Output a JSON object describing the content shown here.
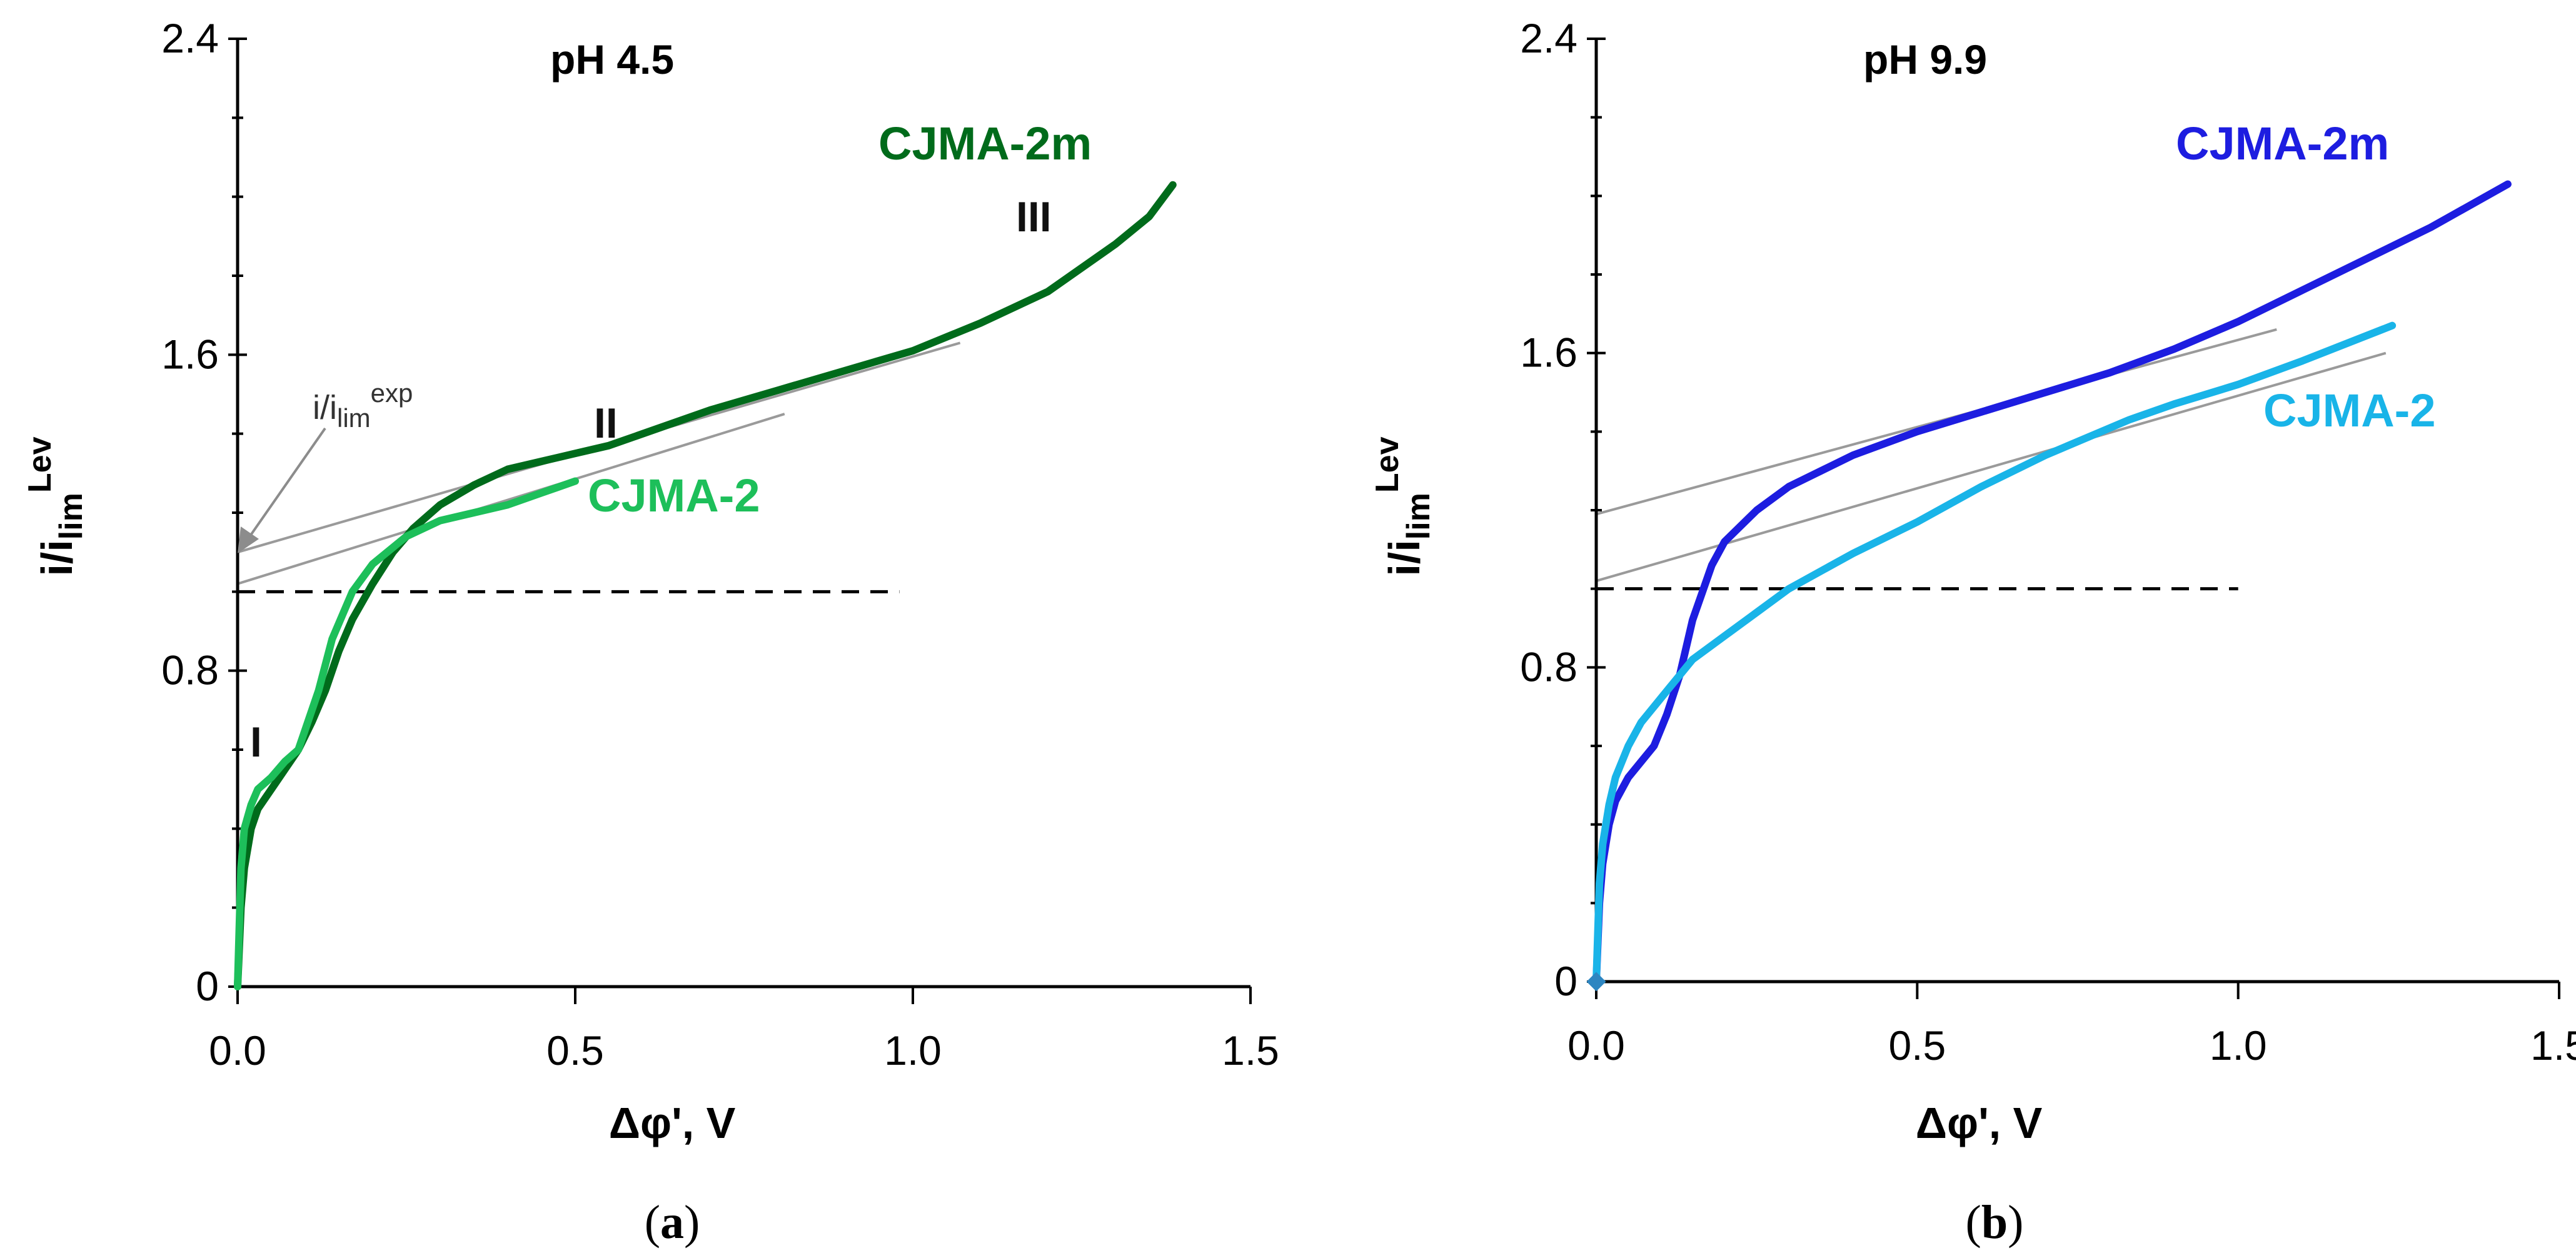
{
  "chart_data": [
    {
      "type": "line",
      "panel": "a",
      "caption": "a",
      "title": "pH 4.5",
      "xlabel": "Δφ', V",
      "ylabel_main": "i/i",
      "ylabel_sub": "lim",
      "ylabel_sup": "Lev",
      "xlim": [
        0,
        1.5
      ],
      "ylim": [
        0,
        2.4
      ],
      "xticks": [
        "0.0",
        "0.5",
        "1.0",
        "1.5"
      ],
      "xtick_values": [
        0,
        0.5,
        1.0,
        1.5
      ],
      "yticks": [
        "0",
        "0.8",
        "1.6",
        "2.4"
      ],
      "ytick_values": [
        0,
        0.8,
        1.6,
        2.4
      ],
      "reference_line": {
        "y": 1.0,
        "x_end": 0.98,
        "style": "dashed"
      },
      "tangent_lines": [
        {
          "from": [
            0,
            1.1
          ],
          "to": [
            1.07,
            1.63
          ]
        },
        {
          "from": [
            0,
            1.02
          ],
          "to": [
            0.81,
            1.45
          ]
        }
      ],
      "series": [
        {
          "name": "CJMA-2m",
          "color": "#006b1b",
          "x": [
            0,
            0.005,
            0.01,
            0.02,
            0.03,
            0.05,
            0.07,
            0.09,
            0.11,
            0.13,
            0.15,
            0.17,
            0.2,
            0.23,
            0.26,
            0.3,
            0.35,
            0.4,
            0.45,
            0.5,
            0.55,
            0.6,
            0.7,
            0.8,
            0.9,
            1.0,
            1.1,
            1.2,
            1.3,
            1.35,
            1.385
          ],
          "y": [
            0,
            0.2,
            0.3,
            0.4,
            0.45,
            0.5,
            0.55,
            0.6,
            0.67,
            0.75,
            0.85,
            0.93,
            1.02,
            1.1,
            1.16,
            1.22,
            1.27,
            1.31,
            1.33,
            1.35,
            1.37,
            1.4,
            1.46,
            1.51,
            1.56,
            1.61,
            1.68,
            1.76,
            1.88,
            1.95,
            2.03
          ]
        },
        {
          "name": "CJMA-2",
          "color": "#1dbf5a",
          "x": [
            0,
            0.005,
            0.01,
            0.02,
            0.03,
            0.05,
            0.07,
            0.09,
            0.1,
            0.12,
            0.14,
            0.17,
            0.2,
            0.25,
            0.3,
            0.35,
            0.4,
            0.45,
            0.5
          ],
          "y": [
            0,
            0.3,
            0.4,
            0.46,
            0.5,
            0.53,
            0.57,
            0.6,
            0.65,
            0.75,
            0.88,
            1.0,
            1.07,
            1.14,
            1.18,
            1.2,
            1.22,
            1.25,
            1.28
          ]
        }
      ],
      "series_labels": [
        {
          "text": "CJMA-2m",
          "color": "#006b1b"
        },
        {
          "text": "CJMA-2",
          "color": "#1dbf5a"
        }
      ],
      "annotations": {
        "region_I": "I",
        "region_II": "II",
        "region_III": "III",
        "ilim_main": "i/i",
        "ilim_sub": "lim",
        "ilim_sup": "exp"
      }
    },
    {
      "type": "line",
      "panel": "b",
      "caption": "b",
      "title": "pH 9.9",
      "xlabel": "Δφ', V",
      "ylabel_main": "i/i",
      "ylabel_sub": "lim",
      "ylabel_sup": "Lev",
      "xlim": [
        0,
        1.5
      ],
      "ylim": [
        0,
        2.4
      ],
      "xticks": [
        "0.0",
        "0.5",
        "1.0",
        "1.5"
      ],
      "xtick_values": [
        0,
        0.5,
        1.0,
        1.5
      ],
      "yticks": [
        "0",
        "0.8",
        "1.6",
        "2.4"
      ],
      "ytick_values": [
        0,
        0.8,
        1.6,
        2.4
      ],
      "reference_line": {
        "y": 1.0,
        "x_end": 1.0,
        "style": "dashed"
      },
      "tangent_lines": [
        {
          "from": [
            0,
            1.19
          ],
          "to": [
            1.06,
            1.66
          ]
        },
        {
          "from": [
            0,
            1.02
          ],
          "to": [
            1.23,
            1.6
          ]
        }
      ],
      "series": [
        {
          "name": "CJMA-2m",
          "color": "#1d1de0",
          "x": [
            0,
            0.005,
            0.01,
            0.02,
            0.03,
            0.05,
            0.07,
            0.09,
            0.11,
            0.13,
            0.15,
            0.18,
            0.2,
            0.25,
            0.3,
            0.35,
            0.4,
            0.5,
            0.6,
            0.7,
            0.8,
            0.9,
            1.0,
            1.1,
            1.2,
            1.3,
            1.42
          ],
          "y": [
            0,
            0.2,
            0.3,
            0.4,
            0.46,
            0.52,
            0.56,
            0.6,
            0.68,
            0.78,
            0.92,
            1.06,
            1.12,
            1.2,
            1.26,
            1.3,
            1.34,
            1.4,
            1.45,
            1.5,
            1.55,
            1.61,
            1.68,
            1.76,
            1.84,
            1.92,
            2.03
          ]
        },
        {
          "name": "CJMA-2",
          "color": "#19b4e8",
          "x": [
            0,
            0.005,
            0.01,
            0.02,
            0.03,
            0.05,
            0.07,
            0.1,
            0.12,
            0.15,
            0.2,
            0.25,
            0.3,
            0.4,
            0.5,
            0.6,
            0.7,
            0.83,
            0.9,
            1.0,
            1.1,
            1.24
          ],
          "y": [
            0,
            0.25,
            0.35,
            0.45,
            0.52,
            0.6,
            0.66,
            0.72,
            0.76,
            0.82,
            0.88,
            0.94,
            1.0,
            1.09,
            1.17,
            1.26,
            1.34,
            1.43,
            1.47,
            1.52,
            1.58,
            1.67
          ]
        }
      ],
      "series_labels": [
        {
          "text": "CJMA-2m",
          "color": "#1d1de0"
        },
        {
          "text": "CJMA-2",
          "color": "#19b4e8"
        }
      ],
      "origin_marker_color": "#2e86c1"
    }
  ]
}
